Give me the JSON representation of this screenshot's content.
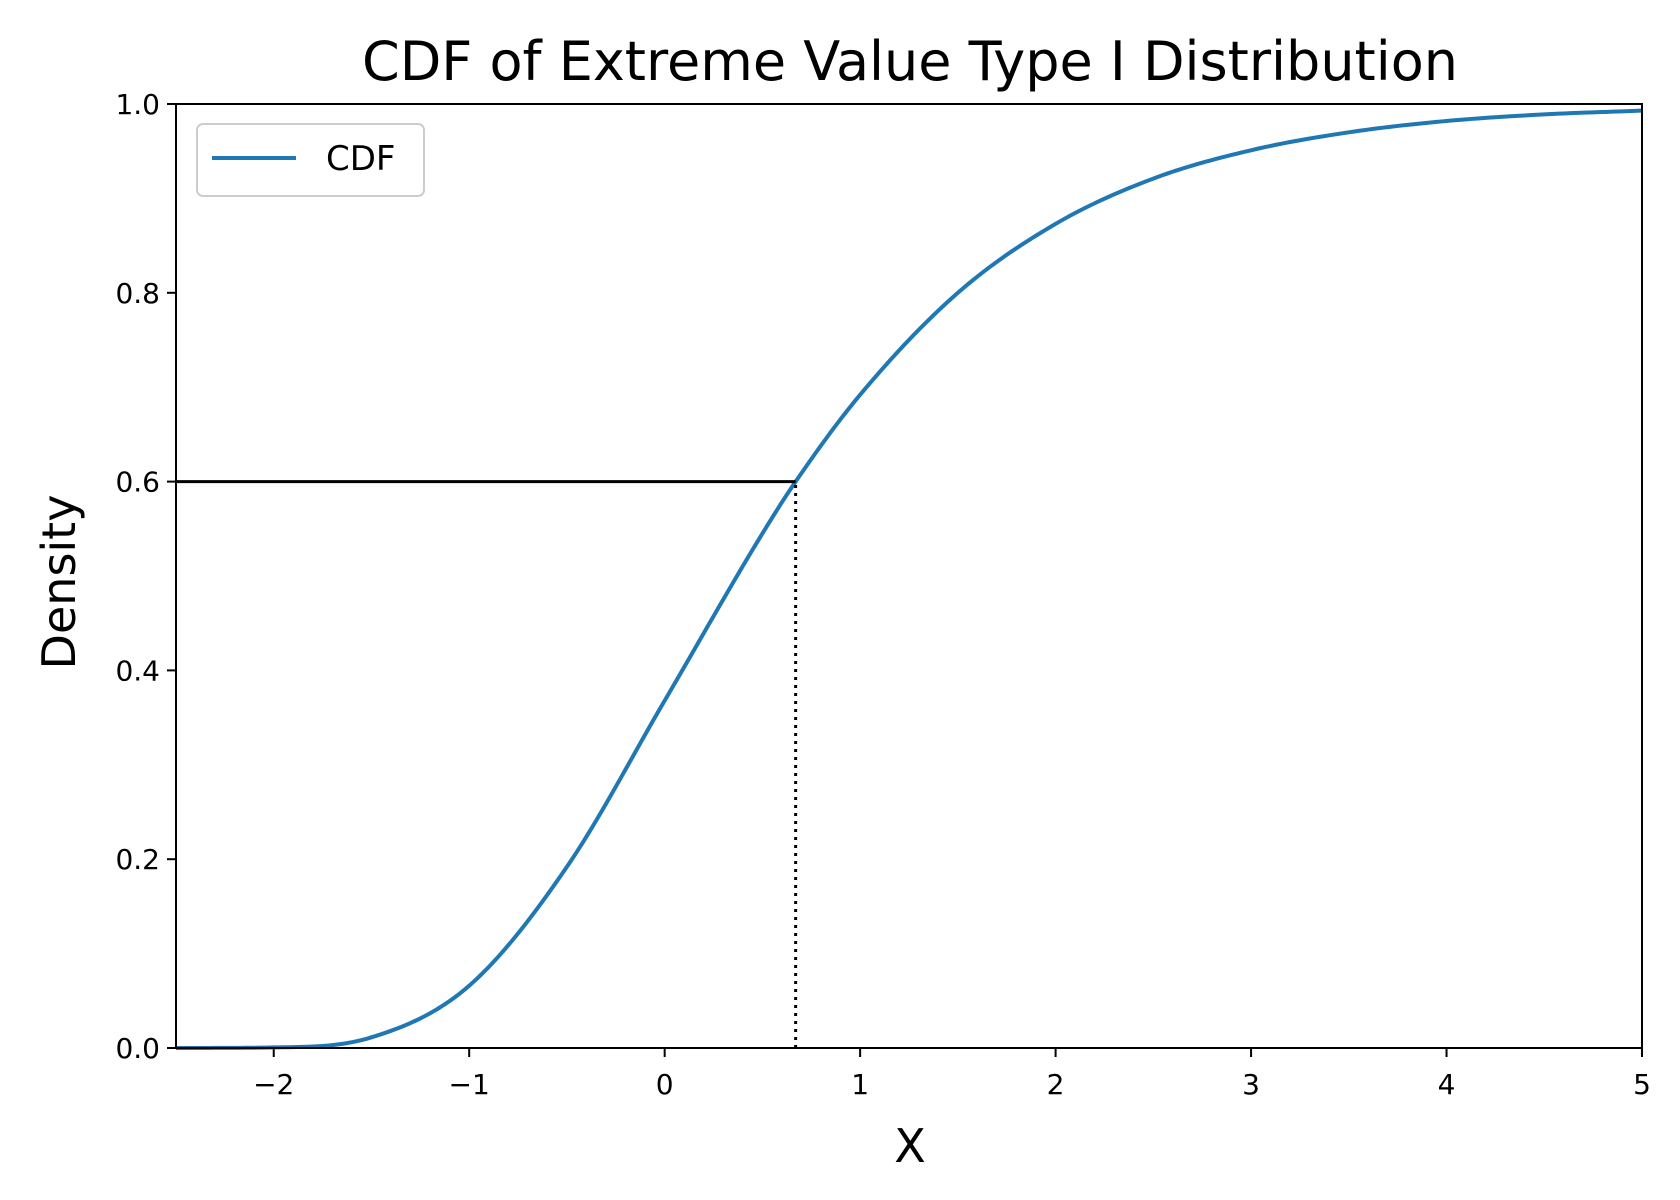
{
  "chart_data": {
    "type": "line",
    "title": "CDF of Extreme Value Type I Distribution",
    "xlabel": "X",
    "ylabel": "Density",
    "xlim": [
      -2.5,
      5
    ],
    "ylim": [
      0,
      1
    ],
    "x_ticks": [
      -2,
      -1,
      0,
      1,
      2,
      3,
      4,
      5
    ],
    "x_tick_labels": [
      "−2",
      "−1",
      "0",
      "1",
      "2",
      "3",
      "4",
      "5"
    ],
    "y_ticks": [
      0.0,
      0.2,
      0.4,
      0.6,
      0.8,
      1.0
    ],
    "y_tick_labels": [
      "0.0",
      "0.2",
      "0.4",
      "0.6",
      "0.8",
      "1.0"
    ],
    "grid": false,
    "legend": {
      "position": "top-left",
      "entries": [
        "CDF"
      ]
    },
    "series": [
      {
        "name": "CDF",
        "color": "#1f77b4",
        "points": [
          [
            -2.5,
            0.0
          ],
          [
            -2.0,
            0.0006
          ],
          [
            -1.5,
            0.0113
          ],
          [
            -1.0,
            0.066
          ],
          [
            -0.5,
            0.192
          ],
          [
            0.0,
            0.368
          ],
          [
            0.5,
            0.545
          ],
          [
            0.67,
            0.6
          ],
          [
            1.0,
            0.692
          ],
          [
            1.5,
            0.8
          ],
          [
            2.0,
            0.873
          ],
          [
            2.5,
            0.921
          ],
          [
            3.0,
            0.951
          ],
          [
            3.5,
            0.97
          ],
          [
            4.0,
            0.982
          ],
          [
            4.5,
            0.989
          ],
          [
            5.0,
            0.993
          ]
        ]
      }
    ],
    "annotations": [
      {
        "kind": "horizontal-line",
        "style": "solid",
        "color": "#000000",
        "y": 0.6,
        "x_from": -2.5,
        "x_to": 0.67
      },
      {
        "kind": "vertical-line",
        "style": "dotted",
        "color": "#000000",
        "x": 0.67,
        "y_from": 0.0,
        "y_to": 0.6
      }
    ]
  }
}
